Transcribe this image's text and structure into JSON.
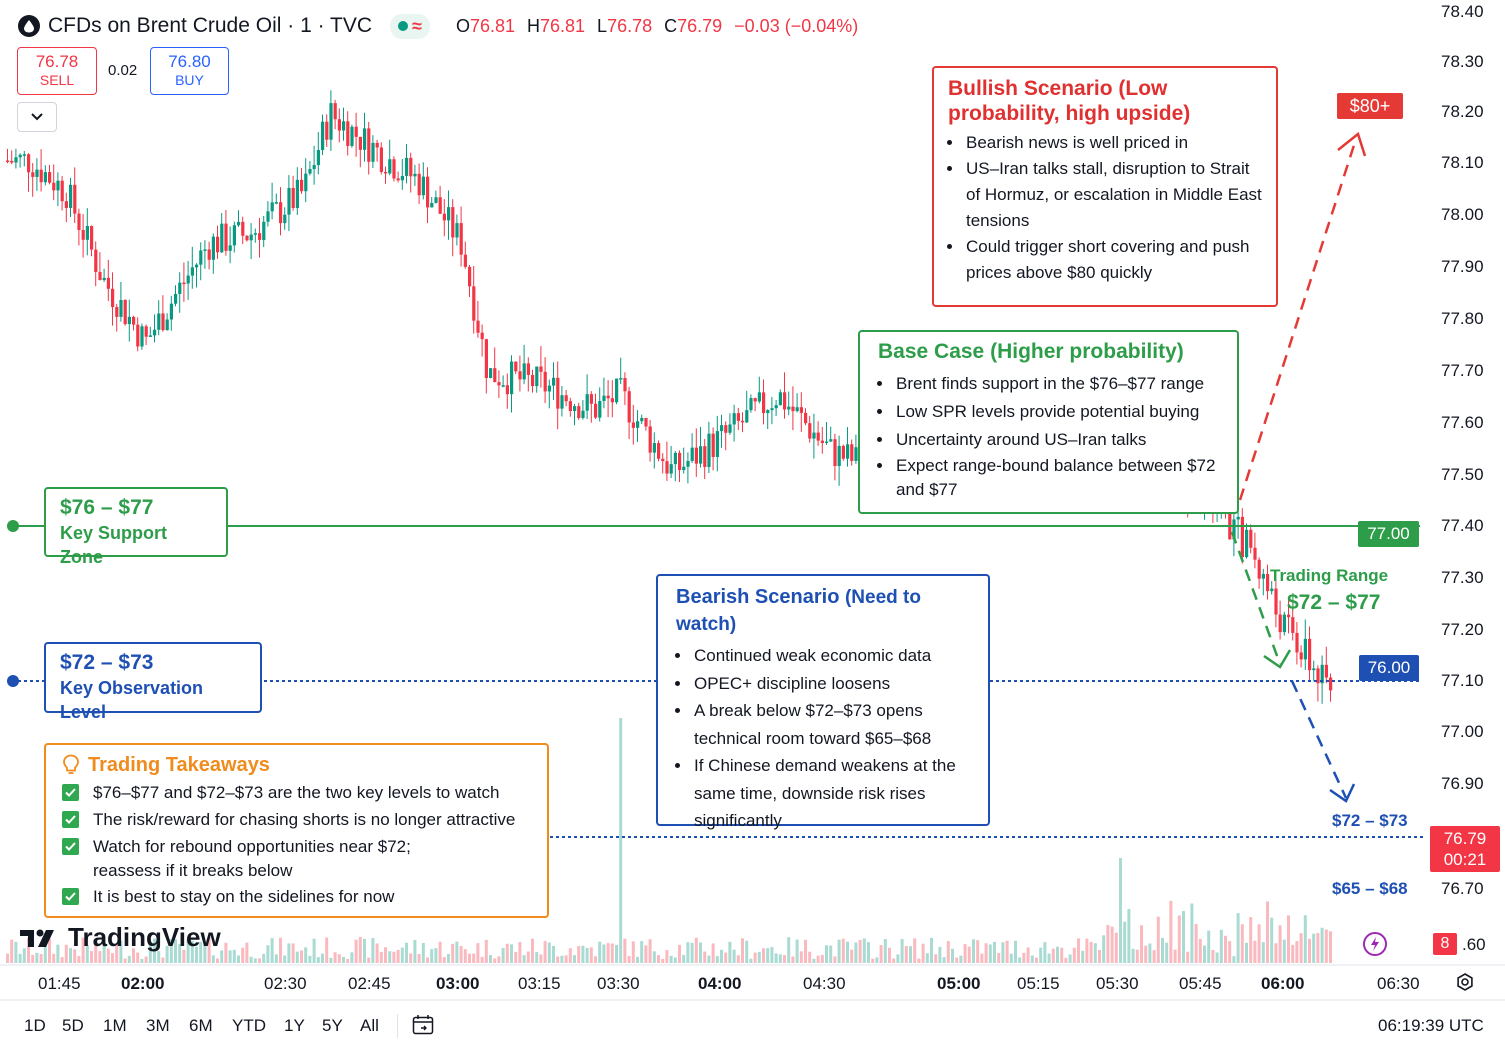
{
  "header": {
    "title": "CFDs on Brent Crude Oil · 1 · TVC",
    "ohlc": [
      {
        "k": "O",
        "v": "76.81"
      },
      {
        "k": "H",
        "v": "76.81"
      },
      {
        "k": "L",
        "v": "76.78"
      },
      {
        "k": "C",
        "v": "76.79"
      }
    ],
    "change": "−0.03 (−0.04%)"
  },
  "trade": {
    "sell_price": "76.78",
    "sell_label": "SELL",
    "spread": "0.02",
    "buy_price": "76.80",
    "buy_label": "BUY"
  },
  "bullish": {
    "title": "Bullish Scenario (Low probability, high upside)",
    "items": [
      "Bearish news is well priced in",
      "US–Iran talks stall, disruption to Strait of Hormuz, or escalation in Middle East tensions",
      "Could trigger short covering and push prices above $80 quickly"
    ],
    "target": "$80+"
  },
  "base": {
    "title": "Base Case (Higher probability)",
    "items": [
      "Brent finds support in the $76–$77 range",
      "Low SPR levels provide potential buying",
      "Uncertainty around US–Iran talks",
      "Expect range-bound balance between $72 and $77"
    ]
  },
  "bearish": {
    "title": "Bearish Scenario",
    "title_note": "(Need to watch)",
    "items": [
      "Continued weak economic data",
      "OPEC+ discipline loosens",
      "A break below $72–$73 opens technical room toward $65–$68",
      "If Chinese demand weakens at the same time, downside risk rises significantly"
    ]
  },
  "support": {
    "range": "$76 – $77",
    "label": "Key Support Zone",
    "tag": "77.00"
  },
  "observation": {
    "range": "$72 – $73",
    "label": "Key Observation Level",
    "tag": "76.00"
  },
  "trading_range": {
    "label": "Trading Range",
    "range": "$72 – $77"
  },
  "targets": {
    "mid": "$72 – $73",
    "low": "$65 – $68"
  },
  "current": {
    "price": "76.79",
    "countdown": "00:21"
  },
  "takeaways": {
    "title": "Trading Takeaways",
    "items": [
      "$76–$77 and $72–$73 are the two key levels to watch",
      "The risk/reward for chasing shorts is no longer attractive",
      "Watch for rebound opportunities near $72; reassess if it breaks below",
      "It is best to stay on the sidelines for now"
    ]
  },
  "brand": "TradingView",
  "badge": "8",
  "price_axis": [
    "78.40",
    "78.30",
    "78.20",
    "78.10",
    "78.00",
    "77.90",
    "77.80",
    "77.70",
    "77.60",
    "77.50",
    "77.40",
    "77.30",
    "77.20",
    "77.10",
    "77.00",
    "76.90",
    "76.70",
    ".60"
  ],
  "time_axis": [
    {
      "t": "01:45",
      "bold": false
    },
    {
      "t": "02:00",
      "bold": true
    },
    {
      "t": "02:30",
      "bold": false
    },
    {
      "t": "02:45",
      "bold": false
    },
    {
      "t": "03:00",
      "bold": true
    },
    {
      "t": "03:15",
      "bold": false
    },
    {
      "t": "03:30",
      "bold": false
    },
    {
      "t": "04:00",
      "bold": true
    },
    {
      "t": "04:30",
      "bold": false
    },
    {
      "t": "05:00",
      "bold": true
    },
    {
      "t": "05:15",
      "bold": false
    },
    {
      "t": "05:30",
      "bold": false
    },
    {
      "t": "05:45",
      "bold": false
    },
    {
      "t": "06:00",
      "bold": true
    },
    {
      "t": "06:30",
      "bold": false
    }
  ],
  "ranges": [
    "1D",
    "5D",
    "1M",
    "3M",
    "6M",
    "YTD",
    "1Y",
    "5Y",
    "All"
  ],
  "clock": "06:19:39 UTC",
  "colors": {
    "up": "#089981",
    "down": "#f23645",
    "support": "#2e9d4a",
    "observe": "#1e50b4",
    "bull": "#e53935",
    "takeaway": "#f08c1e"
  },
  "chart_data": {
    "type": "candlestick",
    "title": "CFDs on Brent Crude Oil · 1 · TVC",
    "ylim": [
      76.6,
      78.4
    ],
    "x_ticks": [
      "01:45",
      "02:00",
      "02:30",
      "02:45",
      "03:00",
      "03:15",
      "03:30",
      "04:00",
      "04:30",
      "05:00",
      "05:15",
      "05:30",
      "05:45",
      "06:00",
      "06:30"
    ],
    "series": [
      {
        "name": "Brent close",
        "x": [
          "01:38",
          "01:45",
          "01:52",
          "02:00",
          "02:05",
          "02:12",
          "02:20",
          "02:30",
          "02:35",
          "02:45",
          "02:52",
          "03:00",
          "03:05",
          "03:15",
          "03:25",
          "03:30",
          "03:40",
          "03:50",
          "04:00",
          "04:10",
          "04:20",
          "04:30",
          "04:40",
          "04:50",
          "05:00",
          "05:10",
          "05:20",
          "05:30",
          "05:35",
          "05:45",
          "05:55",
          "06:00",
          "06:05"
        ],
        "values": [
          78.11,
          78.05,
          77.88,
          77.76,
          77.84,
          77.95,
          77.97,
          78.05,
          78.2,
          78.12,
          78.07,
          77.95,
          77.7,
          77.68,
          77.63,
          77.66,
          77.51,
          77.58,
          77.66,
          77.55,
          77.51,
          77.54,
          77.5,
          77.57,
          77.55,
          77.55,
          77.47,
          77.36,
          77.23,
          77.08,
          76.98,
          76.9,
          76.79
        ]
      }
    ],
    "volume_spikes": [
      {
        "x": "03:30",
        "level": "high"
      },
      {
        "x": "05:05",
        "level": "medium"
      }
    ],
    "annotations": [
      {
        "label": "$76 – $77 Key Support Zone",
        "y": 77.4
      },
      {
        "label": "$72 – $73 Key Observation Level",
        "y": 77.1
      },
      {
        "label": "$72 – $73",
        "y": 76.8
      },
      {
        "label": "$65 – $68",
        "y": 76.7
      },
      {
        "label": "$80+",
        "y": 78.2
      }
    ],
    "last_price": 76.79,
    "grid": false,
    "legend": "none"
  }
}
